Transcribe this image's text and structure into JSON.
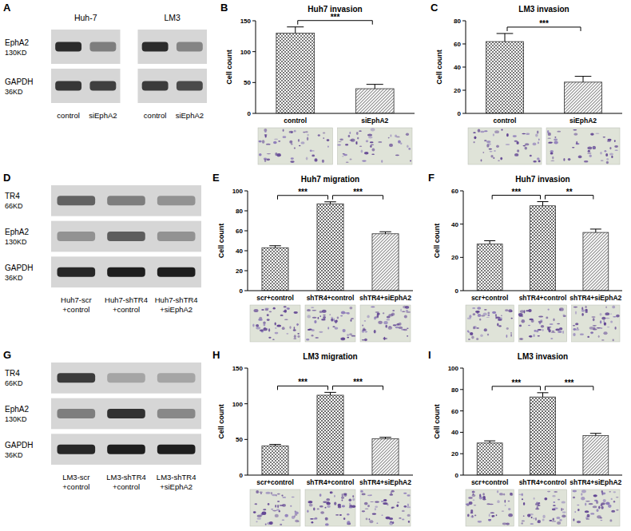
{
  "chart_data": [
    {
      "panel": "B",
      "type": "bar",
      "title": "Huh7 invasion",
      "y_label": "Cell count",
      "categories": [
        "control",
        "siEphA2"
      ],
      "values": [
        130,
        40
      ],
      "errors": [
        10,
        7
      ],
      "colors": [
        "#4d4d4d",
        "#8c8c8c"
      ],
      "ylim": [
        0,
        150
      ],
      "yticks": [
        0,
        50,
        100,
        150
      ],
      "grid": false,
      "annotations": [
        {
          "text": "***",
          "between": [
            "control",
            "siEphA2"
          ]
        }
      ]
    },
    {
      "panel": "C",
      "type": "bar",
      "title": "LM3 invasion",
      "y_label": "Cell count",
      "categories": [
        "control",
        "siEphA2"
      ],
      "values": [
        62,
        27
      ],
      "errors": [
        7,
        5
      ],
      "colors": [
        "#4d4d4d",
        "#8c8c8c"
      ],
      "ylim": [
        0,
        80
      ],
      "yticks": [
        0,
        20,
        40,
        60,
        80
      ],
      "grid": false,
      "annotations": [
        {
          "text": "***",
          "between": [
            "control",
            "siEphA2"
          ]
        }
      ]
    },
    {
      "panel": "E",
      "type": "bar",
      "title": "Huh7 migration",
      "y_label": "Cell count",
      "categories": [
        "scr+control",
        "shTR4+control",
        "shTR4+siEphA2"
      ],
      "values": [
        43,
        87,
        57
      ],
      "errors": [
        2,
        2,
        2
      ],
      "colors": [
        "#4d4d4d",
        "#6e6e6e",
        "#8c8c8c"
      ],
      "ylim": [
        0,
        100
      ],
      "yticks": [
        0,
        20,
        40,
        60,
        80,
        100
      ],
      "grid": false,
      "annotations": [
        {
          "text": "***",
          "between": [
            "scr+control",
            "shTR4+control"
          ]
        },
        {
          "text": "***",
          "between": [
            "shTR4+control",
            "shTR4+siEphA2"
          ]
        }
      ]
    },
    {
      "panel": "F",
      "type": "bar",
      "title": "Huh7 invasion",
      "y_label": "Cell count",
      "categories": [
        "scr+control",
        "shTR4+control",
        "shTR4+siEphA2"
      ],
      "values": [
        28,
        51,
        35
      ],
      "errors": [
        2,
        2.5,
        2
      ],
      "colors": [
        "#4d4d4d",
        "#6e6e6e",
        "#8c8c8c"
      ],
      "ylim": [
        0,
        60
      ],
      "yticks": [
        0,
        20,
        40,
        60
      ],
      "grid": false,
      "annotations": [
        {
          "text": "***",
          "between": [
            "scr+control",
            "shTR4+control"
          ]
        },
        {
          "text": "**",
          "between": [
            "shTR4+control",
            "shTR4+siEphA2"
          ]
        }
      ]
    },
    {
      "panel": "H",
      "type": "bar",
      "title": "LM3 migration",
      "y_label": "Cell count",
      "categories": [
        "scr+control",
        "shTR4+control",
        "shTR4+siEphA2"
      ],
      "values": [
        41,
        112,
        51
      ],
      "errors": [
        2,
        4,
        2
      ],
      "colors": [
        "#4d4d4d",
        "#6e6e6e",
        "#8c8c8c"
      ],
      "ylim": [
        0,
        150
      ],
      "yticks": [
        0,
        50,
        100,
        150
      ],
      "grid": false,
      "annotations": [
        {
          "text": "***",
          "between": [
            "scr+control",
            "shTR4+control"
          ]
        },
        {
          "text": "***",
          "between": [
            "shTR4+control",
            "shTR4+siEphA2"
          ]
        }
      ]
    },
    {
      "panel": "I",
      "type": "bar",
      "title": "LM3  invasion",
      "y_label": "Cell count",
      "categories": [
        "scr+control",
        "shTR4+control",
        "shTR4+siEphA2"
      ],
      "values": [
        30,
        73,
        37
      ],
      "errors": [
        2,
        4,
        2
      ],
      "colors": [
        "#4d4d4d",
        "#6e6e6e",
        "#8c8c8c"
      ],
      "ylim": [
        0,
        100
      ],
      "yticks": [
        0,
        20,
        40,
        60,
        80,
        100
      ],
      "grid": false,
      "annotations": [
        {
          "text": "***",
          "between": [
            "scr+control",
            "shTR4+control"
          ]
        },
        {
          "text": "***",
          "between": [
            "shTR4+control",
            "shTR4+siEphA2"
          ]
        }
      ]
    }
  ],
  "blots": [
    {
      "panel": "A",
      "groups": [
        {
          "name": "Huh-7",
          "lanes": [
            "control",
            "siEphA2"
          ]
        },
        {
          "name": "LM3",
          "lanes": [
            "control",
            "siEphA2"
          ]
        }
      ],
      "rows": [
        {
          "protein": "EphA2",
          "size": "130KD"
        },
        {
          "protein": "GAPDH",
          "size": "36KD"
        }
      ]
    },
    {
      "panel": "D",
      "lanes": [
        "Huh7-scr +control",
        "Huh7-shTR4 +control",
        "Huh7-shTR4 +siEphA2"
      ],
      "rows": [
        {
          "protein": "TR4",
          "size": "66KD"
        },
        {
          "protein": "EphA2",
          "size": "130KD"
        },
        {
          "protein": "GAPDH",
          "size": "36KD"
        }
      ]
    },
    {
      "panel": "G",
      "lanes": [
        "LM3-scr +control",
        "LM3-shTR4 +control",
        "LM3-shTR4 +siEphA2"
      ],
      "rows": [
        {
          "protein": "TR4",
          "size": "66KD"
        },
        {
          "protein": "EphA2",
          "size": "130KD"
        },
        {
          "protein": "GAPDH",
          "size": "36KD"
        }
      ]
    }
  ]
}
